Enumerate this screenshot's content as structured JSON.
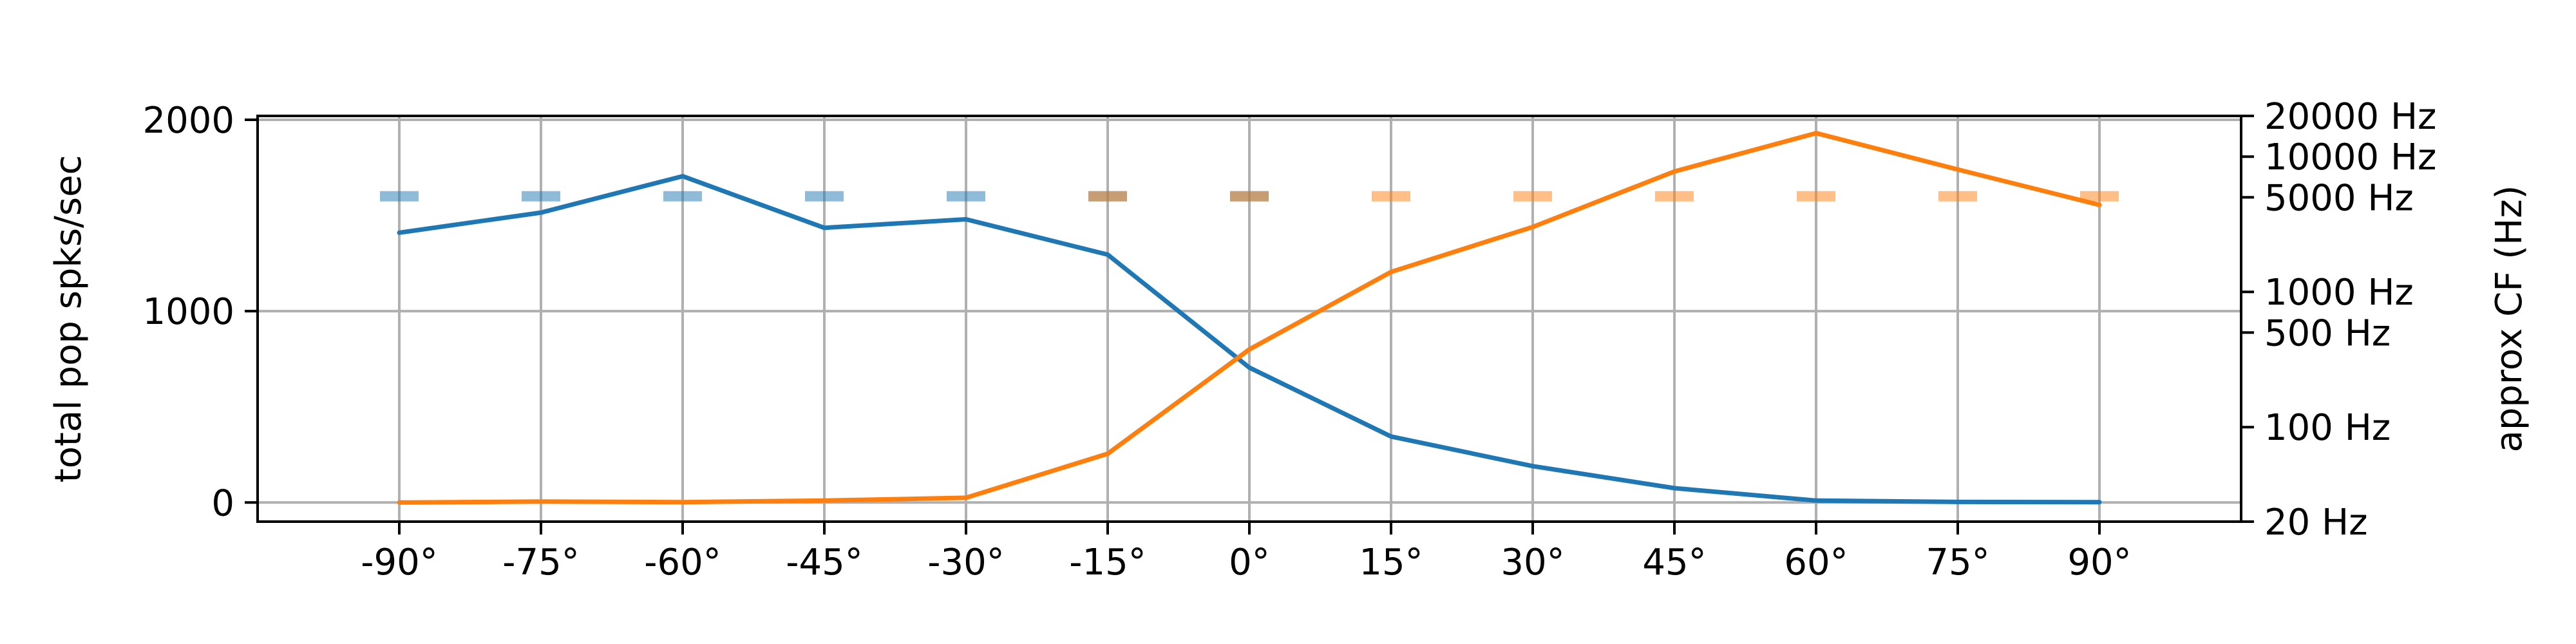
{
  "chart_data": {
    "type": "line",
    "title": "",
    "xlabel": "",
    "ylabel": "total pop spks/sec",
    "y2label": "approx CF (Hz)",
    "x": [
      -90,
      -75,
      -60,
      -45,
      -30,
      -15,
      0,
      15,
      30,
      45,
      60,
      75,
      90
    ],
    "x_tick_labels": [
      "-90°",
      "-75°",
      "-60°",
      "-45°",
      "-30°",
      "-15°",
      "0°",
      "15°",
      "30°",
      "45°",
      "60°",
      "75°",
      "90°"
    ],
    "xlim": [
      -105,
      105
    ],
    "ylim": [
      -100,
      2020
    ],
    "y_ticks": [
      0,
      1000,
      2000
    ],
    "y_tick_labels": [
      "0",
      "1000",
      "2000"
    ],
    "y2_scale": "log",
    "y2lim": [
      20,
      20000
    ],
    "y2_ticks": [
      20,
      100,
      500,
      1000,
      5000,
      10000,
      20000
    ],
    "y2_tick_labels": [
      "20 Hz",
      "100 Hz",
      "500 Hz",
      "1000 Hz",
      "5000 Hz",
      "10000 Hz",
      "20000 Hz"
    ],
    "grid": true,
    "series": [
      {
        "color": "#1f77b4",
        "values": [
          1410,
          1515,
          1705,
          1435,
          1480,
          1295,
          705,
          345,
          190,
          75,
          10,
          3,
          2
        ]
      },
      {
        "color": "#ff7f0e",
        "values": [
          0,
          5,
          2,
          10,
          25,
          255,
          800,
          1205,
          1440,
          1730,
          1930,
          1740,
          1555
        ]
      }
    ],
    "marker_series": [
      {
        "color": "#1f77b4",
        "x": [
          -90,
          -75,
          -60,
          -45,
          -30,
          -15,
          0
        ],
        "y": [
          1600,
          1600,
          1600,
          1600,
          1600,
          1600,
          1600
        ]
      },
      {
        "color": "#ff7f0e",
        "x": [
          -15,
          0,
          15,
          30,
          45,
          60,
          75,
          90
        ],
        "y": [
          1600,
          1600,
          1600,
          1600,
          1600,
          1600,
          1600,
          1600
        ]
      }
    ]
  }
}
